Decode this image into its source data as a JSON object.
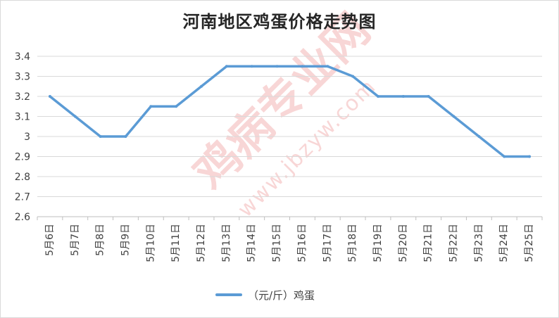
{
  "title": "河南地区鸡蛋价格走势图",
  "watermark": {
    "main": "鸡病专业网",
    "url": "www.jbzyw.com"
  },
  "legend": {
    "label": "（元/斤）鸡蛋"
  },
  "colors": {
    "line": "#5b9bd5",
    "grid": "#d9d9d9",
    "axis_text": "#404040"
  },
  "chart_data": {
    "type": "line",
    "title": "河南地区鸡蛋价格走势图",
    "xlabel": "",
    "ylabel": "",
    "ylim": [
      2.6,
      3.4
    ],
    "yticks": [
      "2.6",
      "2.7",
      "2.8",
      "2.9",
      "3",
      "3.1",
      "3.2",
      "3.3",
      "3.4"
    ],
    "grid": true,
    "legend_position": "bottom",
    "categories": [
      "5月6日",
      "5月7日",
      "5月8日",
      "5月9日",
      "5月10日",
      "5月11日",
      "5月12日",
      "5月13日",
      "5月14日",
      "5月15日",
      "5月16日",
      "5月17日",
      "5月18日",
      "5月19日",
      "5月20日",
      "5月21日",
      "5月22日",
      "5月23日",
      "5月24日",
      "5月25日"
    ],
    "series": [
      {
        "name": "（元/斤）鸡蛋",
        "values": [
          3.2,
          3.1,
          3.0,
          3.0,
          3.15,
          3.15,
          3.25,
          3.35,
          3.35,
          3.35,
          3.35,
          3.35,
          3.3,
          3.2,
          3.2,
          3.2,
          3.1,
          3.0,
          2.9,
          2.9
        ]
      }
    ]
  }
}
